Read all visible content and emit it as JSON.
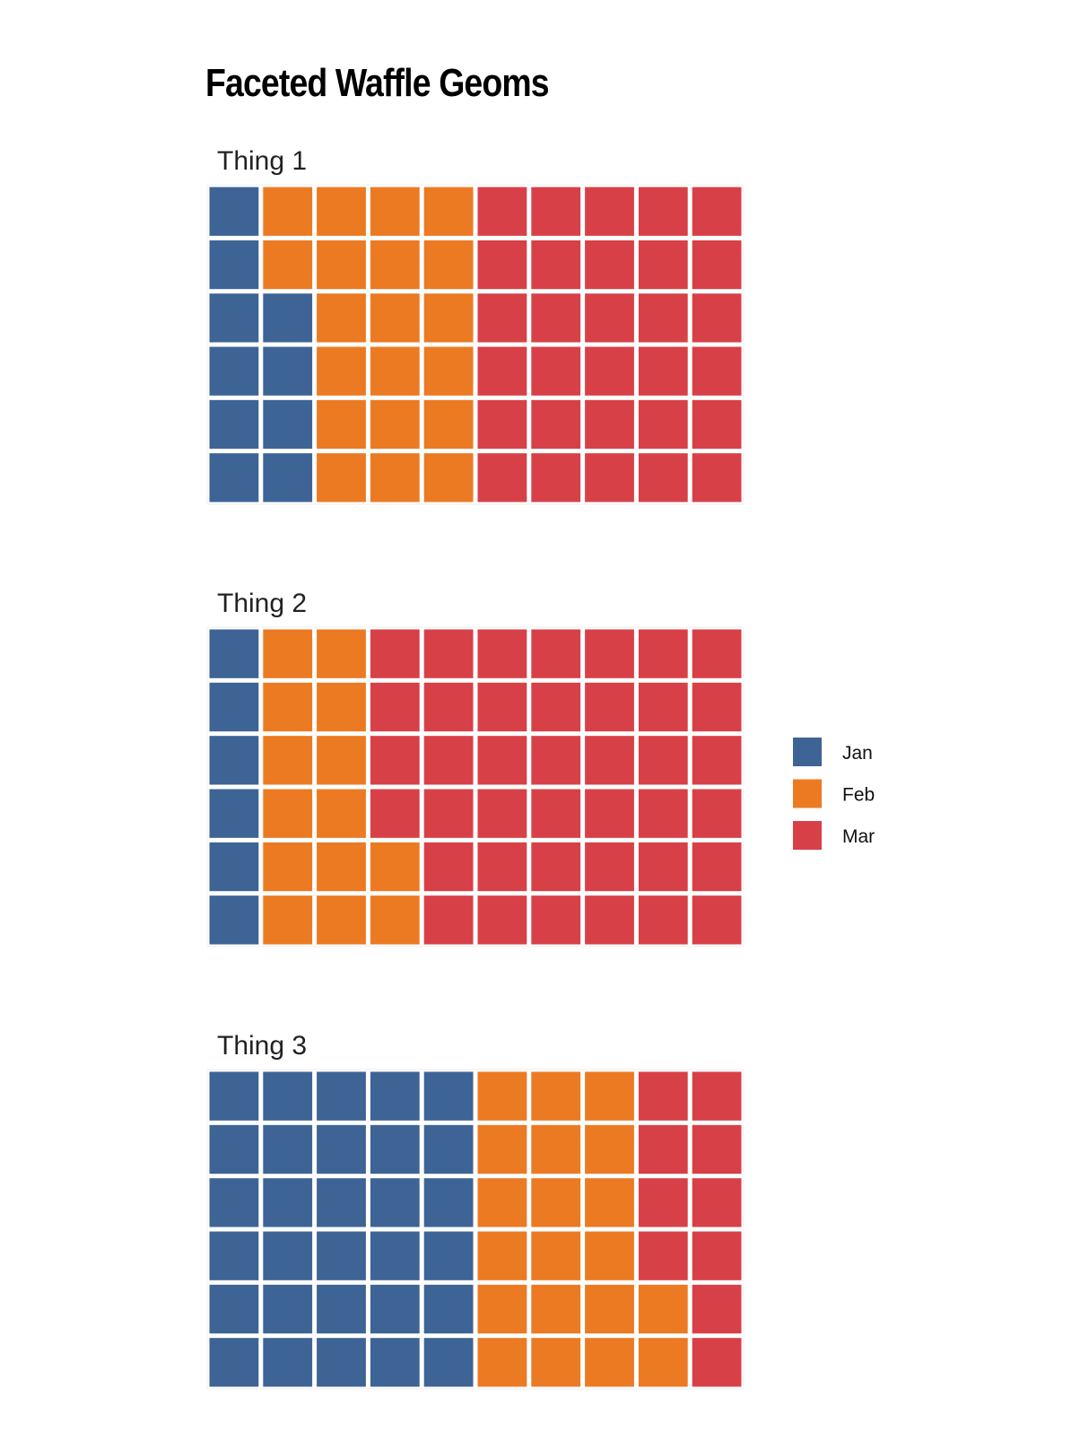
{
  "chart_data": {
    "type": "waffle",
    "title": "Faceted Waffle Geoms",
    "grid": {
      "rows": 6,
      "cols": 10,
      "fill_order": "column-wise, bottom to top"
    },
    "legend": {
      "placement": "right",
      "entries": [
        "Jan",
        "Feb",
        "Mar"
      ]
    },
    "colors": {
      "Jan": "#3e6496",
      "Feb": "#ec7a23",
      "Mar": "#d84048"
    },
    "facets": [
      {
        "label": "Thing 1",
        "values": {
          "Jan": 10,
          "Feb": 20,
          "Mar": 30
        }
      },
      {
        "label": "Thing 2",
        "values": {
          "Jan": 6,
          "Feb": 14,
          "Mar": 40
        }
      },
      {
        "label": "Thing 3",
        "values": {
          "Jan": 30,
          "Feb": 20,
          "Mar": 10
        }
      }
    ]
  }
}
